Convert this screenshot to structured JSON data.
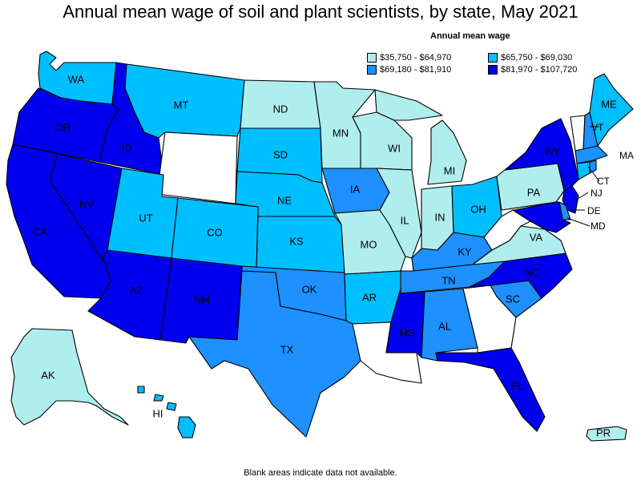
{
  "title": "Annual mean wage of soil and plant scientists, by state, May 2021",
  "legend": {
    "title": "Annual mean wage",
    "items": [
      {
        "label": "$35,750 - $64,970",
        "color": "#b0eeee"
      },
      {
        "label": "$65,750 - $69,030",
        "color": "#00bfff"
      },
      {
        "label": "$69,180 - $81,910",
        "color": "#1e90ff"
      },
      {
        "label": "$81,970 - $107,720",
        "color": "#0000ee"
      }
    ]
  },
  "footnote": "Blank areas indicate data not available.",
  "colors": {
    "nodata": "#ffffff",
    "c1": "#b0eeee",
    "c2": "#00bfff",
    "c3": "#1e90ff",
    "c4": "#0000ee"
  },
  "states": {
    "WA": "c2",
    "OR": "c4",
    "CA": "c4",
    "NV": "c4",
    "ID": "c4",
    "MT": "c2",
    "WY": "nodata",
    "UT": "c2",
    "CO": "c2",
    "AZ": "c4",
    "NM": "c4",
    "ND": "c1",
    "SD": "c2",
    "NE": "c2",
    "KS": "c2",
    "OK": "c3",
    "TX": "c3",
    "MN": "c1",
    "IA": "c3",
    "MO": "c1",
    "AR": "c2",
    "LA": "nodata",
    "WI": "c1",
    "IL": "c1",
    "MI": "c1",
    "IN": "c1",
    "OH": "c2",
    "KY": "c3",
    "TN": "c3",
    "MS": "c4",
    "AL": "c3",
    "GA": "nodata",
    "FL": "c4",
    "SC": "c3",
    "NC": "c4",
    "VA": "c1",
    "WV": "nodata",
    "PA": "c1",
    "NY": "c4",
    "VT": "nodata",
    "NH": "c3",
    "ME": "c2",
    "MA": "c3",
    "CT": "c2",
    "RI": "c3",
    "NJ": "c4",
    "DE": "c3",
    "MD": "c4",
    "AK": "c1",
    "HI": "c2",
    "PR": "c1"
  },
  "labels": {
    "WA": "WA",
    "OR": "OR",
    "CA": "CA",
    "NV": "NV",
    "ID": "ID",
    "MT": "MT",
    "UT": "UT",
    "CO": "CO",
    "AZ": "AZ",
    "NM": "NM",
    "ND": "ND",
    "SD": "SD",
    "NE": "NE",
    "KS": "KS",
    "OK": "OK",
    "TX": "TX",
    "MN": "MN",
    "IA": "IA",
    "MO": "MO",
    "AR": "AR",
    "WI": "WI",
    "IL": "IL",
    "MI": "MI",
    "IN": "IN",
    "OH": "OH",
    "KY": "KY",
    "TN": "TN",
    "MS": "MS",
    "AL": "AL",
    "FL": "FL",
    "SC": "SC",
    "NC": "NC",
    "VA": "VA",
    "PA": "PA",
    "NY": "NY",
    "VT": "VT",
    "ME": "ME",
    "MA": "MA",
    "CT": "CT",
    "NJ": "NJ",
    "DE": "DE",
    "MD": "MD",
    "AK": "AK",
    "HI": "HI",
    "PR": "PR"
  }
}
